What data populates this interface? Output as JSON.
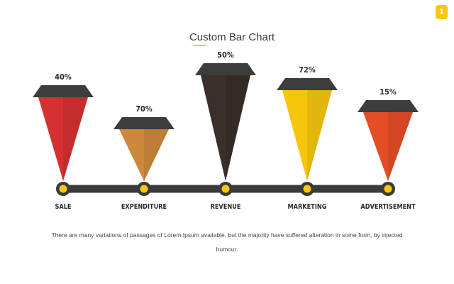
{
  "page_badge": "1",
  "colors": {
    "accent": "#f9c80e",
    "timeline": "#3a3a3a",
    "cap": "#3d3d3d",
    "text_dark": "#2b2b2b"
  },
  "chart_data": {
    "type": "bar",
    "title": "Custom Bar Chart",
    "xlabel": "",
    "ylabel": "",
    "ylim": [
      0,
      100
    ],
    "grid": false,
    "legend": "none",
    "categories": [
      "SALE",
      "EXPENDITURE",
      "REVENUE",
      "MARKETING",
      "ADVERTISEMENT"
    ],
    "values": [
      40,
      70,
      50,
      72,
      15
    ],
    "value_labels": [
      "40%",
      "70%",
      "50%",
      "72%",
      "15%"
    ],
    "bar_colors": [
      "#d63131",
      "#cd883b",
      "#3a2f2a",
      "#f7c60c",
      "#e44d26"
    ]
  },
  "caption": "There are many variations of passages of Lorem Ipsum available, but the majority have suffered alteration in some form, by injected humour."
}
